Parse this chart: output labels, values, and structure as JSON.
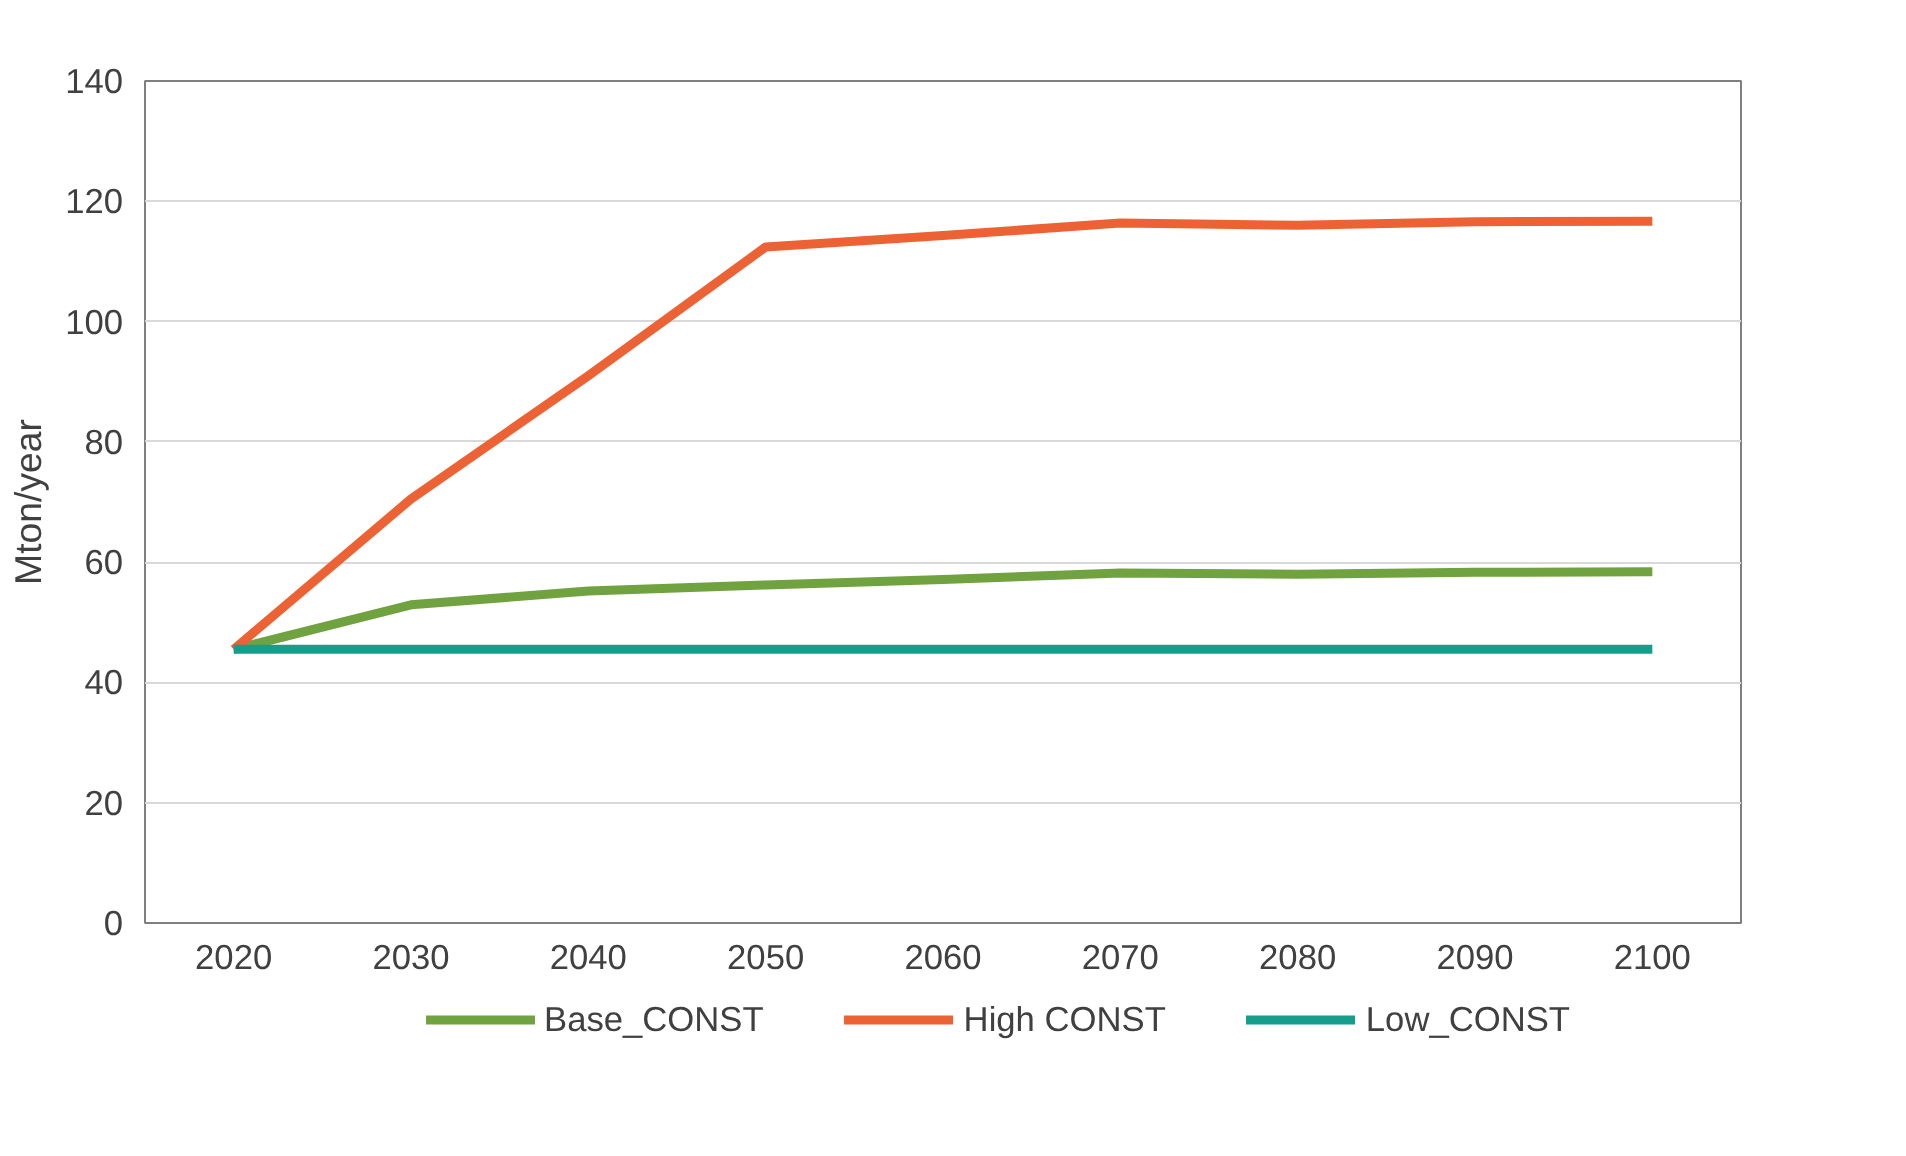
{
  "chart_data": {
    "type": "line",
    "ylabel": "Mton/year",
    "categories": [
      "2020",
      "2030",
      "2040",
      "2050",
      "2060",
      "2070",
      "2080",
      "2090",
      "2100"
    ],
    "series": [
      {
        "name": "Base_CONST",
        "color": "#70a23f",
        "values": [
          45.5,
          52.9,
          55.2,
          56.2,
          57.1,
          58.2,
          58.0,
          58.3,
          58.4
        ]
      },
      {
        "name": "High CONST",
        "color": "#ed6234",
        "values": [
          45.5,
          70.5,
          91.0,
          112.4,
          114.3,
          116.4,
          116.0,
          116.6,
          116.7
        ]
      },
      {
        "name": "Low_CONST",
        "color": "#159e8c",
        "values": [
          45.5,
          45.5,
          45.5,
          45.5,
          45.5,
          45.5,
          45.5,
          45.5,
          45.5
        ]
      }
    ],
    "ylim": [
      0,
      140
    ],
    "yticks": [
      0,
      20,
      40,
      60,
      80,
      100,
      120,
      140
    ],
    "grid": "y",
    "legend": "bottom",
    "marker": "none",
    "line_style": "solid"
  }
}
